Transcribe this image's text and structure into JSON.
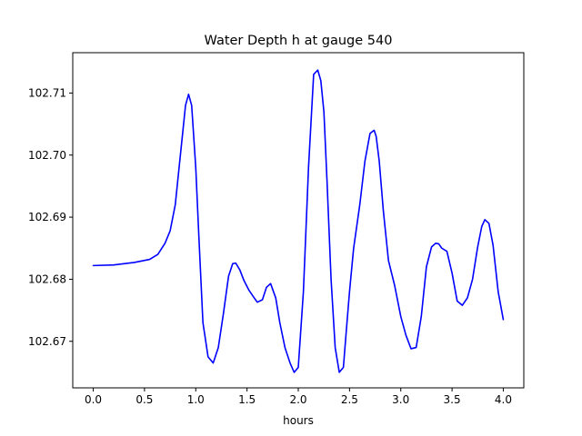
{
  "chart_data": {
    "type": "line",
    "title": "Water Depth h at gauge 540",
    "xlabel": "hours",
    "ylabel": "",
    "xlim": [
      -0.2,
      4.2
    ],
    "ylim": [
      102.6625,
      102.7165
    ],
    "xticks": [
      0.0,
      0.5,
      1.0,
      1.5,
      2.0,
      2.5,
      3.0,
      3.5,
      4.0
    ],
    "xtick_labels": [
      "0.0",
      "0.5",
      "1.0",
      "1.5",
      "2.0",
      "2.5",
      "3.0",
      "3.5",
      "4.0"
    ],
    "yticks": [
      102.67,
      102.68,
      102.69,
      102.7,
      102.71
    ],
    "ytick_labels": [
      "102.67",
      "102.68",
      "102.69",
      "102.70",
      "102.71"
    ],
    "grid": false,
    "series": [
      {
        "color": "#0000ff",
        "x": [
          0.0,
          0.2,
          0.4,
          0.55,
          0.63,
          0.7,
          0.75,
          0.8,
          0.85,
          0.9,
          0.93,
          0.96,
          1.0,
          1.03,
          1.07,
          1.12,
          1.17,
          1.22,
          1.27,
          1.32,
          1.36,
          1.39,
          1.43,
          1.47,
          1.52,
          1.57,
          1.6,
          1.65,
          1.69,
          1.73,
          1.78,
          1.82,
          1.87,
          1.92,
          1.96,
          2.0,
          2.05,
          2.1,
          2.15,
          2.19,
          2.22,
          2.25,
          2.28,
          2.32,
          2.36,
          2.4,
          2.44,
          2.47,
          2.5,
          2.54,
          2.6,
          2.65,
          2.7,
          2.74,
          2.76,
          2.79,
          2.83,
          2.88,
          2.94,
          3.0,
          3.05,
          3.1,
          3.15,
          3.2,
          3.25,
          3.3,
          3.34,
          3.37,
          3.4,
          3.45,
          3.5,
          3.55,
          3.6,
          3.65,
          3.7,
          3.75,
          3.79,
          3.82,
          3.86,
          3.9,
          3.95,
          4.0
        ],
        "y": [
          102.6822,
          102.6823,
          102.6827,
          102.6832,
          102.684,
          102.6858,
          102.6878,
          102.692,
          102.7,
          102.708,
          102.7098,
          102.708,
          102.698,
          102.687,
          102.673,
          102.6675,
          102.6665,
          102.669,
          102.6745,
          102.6805,
          102.6825,
          102.6826,
          102.6815,
          102.6798,
          102.6782,
          102.677,
          102.6763,
          102.6767,
          102.6787,
          102.6793,
          102.677,
          102.673,
          102.669,
          102.6665,
          102.665,
          102.6658,
          102.678,
          102.698,
          102.713,
          102.7137,
          102.712,
          102.707,
          102.696,
          102.68,
          102.669,
          102.665,
          102.6658,
          102.672,
          102.678,
          102.685,
          102.692,
          102.699,
          102.7035,
          102.704,
          102.703,
          102.699,
          102.691,
          102.683,
          102.679,
          102.674,
          102.671,
          102.6688,
          102.669,
          102.674,
          102.682,
          102.6852,
          102.6858,
          102.6857,
          102.685,
          102.6845,
          102.681,
          102.6765,
          102.6758,
          102.677,
          102.68,
          102.6852,
          102.6885,
          102.6896,
          102.689,
          102.6855,
          102.678,
          102.6735
        ]
      }
    ]
  }
}
